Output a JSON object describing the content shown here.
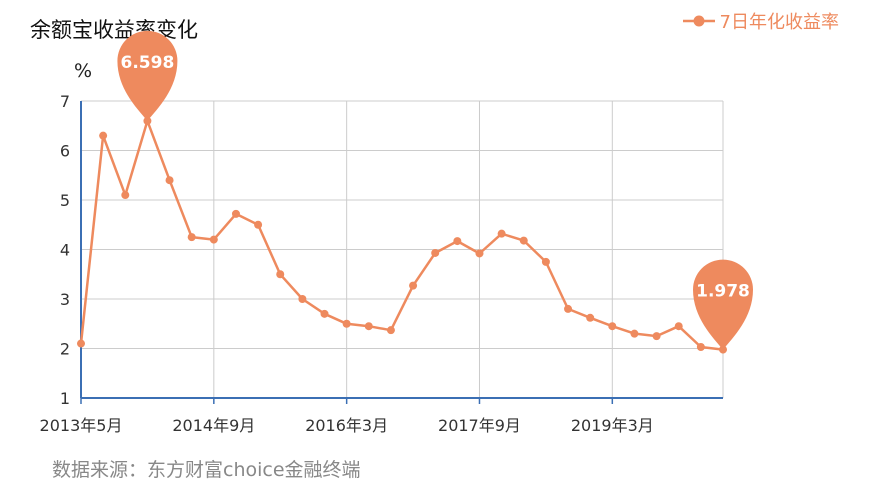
{
  "title": "余额宝收益率变化",
  "unit": "%",
  "legend": {
    "label": "7日年化收益率"
  },
  "source": "数据来源：东方财富choice金融终端",
  "colors": {
    "series": "#ee8a5e",
    "axis": "#3b6fb4",
    "grid": "#cccccc"
  },
  "chart_data": {
    "type": "line",
    "series": [
      {
        "name": "7日年化收益率",
        "values": [
          2.1,
          6.3,
          5.1,
          6.598,
          5.4,
          4.25,
          4.2,
          4.72,
          4.5,
          3.5,
          3.0,
          2.7,
          2.5,
          2.45,
          2.37,
          3.27,
          3.93,
          4.17,
          3.92,
          4.32,
          4.18,
          3.75,
          2.8,
          2.62,
          2.45,
          2.3,
          2.25,
          2.45,
          2.03,
          1.978
        ]
      }
    ],
    "x_ticks": [
      "2013年5月",
      "2014年9月",
      "2016年3月",
      "2017年9月",
      "2019年3月"
    ],
    "y_ticks": [
      "1",
      "2",
      "3",
      "4",
      "5",
      "6",
      "7"
    ],
    "ylim": [
      1,
      7
    ],
    "grid": true,
    "legend_position": "top-right",
    "callouts": [
      {
        "label": "6.598",
        "index": 3
      },
      {
        "label": "1.978",
        "index": 29
      }
    ]
  }
}
